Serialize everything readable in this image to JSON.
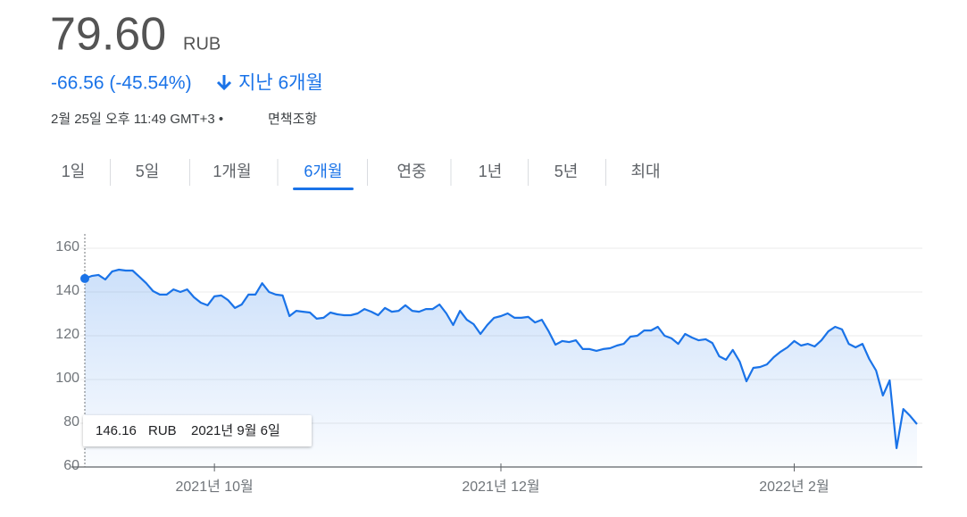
{
  "header": {
    "price": "79.60",
    "currency": "RUB",
    "change": "-66.56 (-45.54%)",
    "period": "지난 6개월",
    "timestamp": "2월 25일 오후 11:49 GMT+3 •",
    "disclaimer": "면책조항"
  },
  "tabs": [
    "1일",
    "5일",
    "1개월",
    "6개월",
    "연중",
    "1년",
    "5년",
    "최대"
  ],
  "selected_tab": 3,
  "chart_data": {
    "type": "line",
    "color": "#1a73e8",
    "grid": true,
    "ylim": [
      60,
      160
    ],
    "yticks": [
      60,
      80,
      100,
      120,
      140,
      160
    ],
    "tooltip_date": "2021년 9월 6일",
    "categories": [
      null,
      null,
      null,
      null,
      null,
      null,
      null,
      null,
      null,
      null,
      null,
      null,
      null,
      null,
      null,
      null,
      null,
      null,
      null,
      "2021년 10월",
      null,
      null,
      null,
      null,
      null,
      null,
      null,
      null,
      null,
      null,
      null,
      null,
      null,
      null,
      null,
      null,
      null,
      null,
      null,
      null,
      null,
      null,
      null,
      null,
      null,
      null,
      null,
      null,
      null,
      null,
      null,
      null,
      null,
      null,
      null,
      null,
      null,
      null,
      null,
      null,
      null,
      "2021년 12월",
      null,
      null,
      null,
      null,
      null,
      null,
      null,
      null,
      null,
      null,
      null,
      null,
      null,
      null,
      null,
      null,
      null,
      null,
      null,
      null,
      null,
      null,
      null,
      null,
      null,
      null,
      null,
      null,
      null,
      null,
      null,
      null,
      null,
      null,
      null,
      null,
      null,
      null,
      null,
      null,
      null,
      null,
      "2022년 2월",
      null,
      null,
      null,
      null,
      null,
      null,
      null,
      null,
      null,
      null,
      null,
      null,
      null,
      null,
      null,
      null,
      null,
      null
    ],
    "values": [
      146.16,
      147.3,
      147.8,
      145.7,
      149.4,
      150.2,
      149.8,
      149.8,
      147,
      144,
      140.4,
      138.8,
      138.8,
      141.2,
      140,
      141.2,
      137.6,
      135.1,
      133.9,
      138,
      138.4,
      136.3,
      132.7,
      134.3,
      138.8,
      138.8,
      144,
      140,
      138.8,
      138.4,
      129,
      131.4,
      131,
      130.6,
      127.8,
      128.2,
      130.6,
      129.8,
      129.4,
      129.4,
      130.2,
      132.2,
      131,
      129.4,
      132.7,
      131,
      131.4,
      133.9,
      131.4,
      131,
      132.2,
      132.2,
      134.3,
      130.2,
      124.9,
      131.4,
      127.3,
      125.3,
      120.8,
      124.9,
      128.2,
      129,
      130.2,
      128.2,
      128.2,
      128.6,
      126.1,
      127.3,
      122,
      115.9,
      117.6,
      117.1,
      117.9,
      113.9,
      113.9,
      113.1,
      113.9,
      114.3,
      115.5,
      116.3,
      119.6,
      120,
      122.4,
      122.4,
      124.1,
      120,
      118.8,
      116.3,
      120.8,
      119.2,
      117.9,
      118.4,
      116.7,
      110.6,
      109,
      113.5,
      108.2,
      99.2,
      105.3,
      105.7,
      106.9,
      110.2,
      112.7,
      114.7,
      117.6,
      115.5,
      116.3,
      115.1,
      117.9,
      122,
      124.1,
      122.9,
      116.3,
      114.7,
      116.3,
      109.4,
      104.1,
      92.7,
      99.6,
      68.6,
      86.5,
      83.3,
      79.6
    ]
  }
}
